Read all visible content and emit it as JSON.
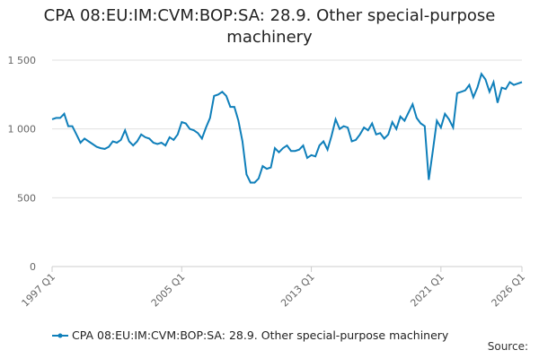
{
  "chart_data": {
    "type": "line",
    "title": "CPA 08:EU:IM:CVM:BOP:SA: 28.9. Other special-purpose machinery",
    "categories": [
      "1997 Q1",
      null,
      null,
      null,
      null,
      null,
      null,
      null,
      null,
      null,
      null,
      null,
      null,
      null,
      null,
      null,
      null,
      null,
      null,
      null,
      null,
      null,
      null,
      null,
      null,
      null,
      null,
      null,
      null,
      null,
      null,
      null,
      "2005 Q1",
      null,
      null,
      null,
      null,
      null,
      null,
      null,
      null,
      null,
      null,
      null,
      null,
      null,
      null,
      null,
      null,
      null,
      null,
      null,
      null,
      null,
      null,
      null,
      null,
      null,
      null,
      null,
      null,
      null,
      null,
      null,
      "2013 Q1",
      null,
      null,
      null,
      null,
      null,
      null,
      null,
      null,
      null,
      null,
      null,
      null,
      null,
      null,
      null,
      null,
      null,
      null,
      null,
      null,
      null,
      null,
      null,
      null,
      null,
      null,
      null,
      null,
      null,
      null,
      null,
      "2021 Q1",
      null,
      null,
      null,
      null,
      null,
      null,
      null,
      null,
      null,
      null,
      null,
      null,
      null,
      null,
      null,
      null,
      null,
      null,
      null,
      "2026 Q1"
    ],
    "series": [
      {
        "name": "CPA 08:EU:IM:CVM:BOP:SA: 28.9. Other special-purpose machinery",
        "color": "#0f7fba",
        "values": [
          1070,
          1080,
          1080,
          1110,
          1020,
          1020,
          960,
          900,
          930,
          910,
          890,
          870,
          860,
          855,
          870,
          910,
          900,
          920,
          990,
          910,
          880,
          910,
          960,
          940,
          930,
          900,
          890,
          900,
          880,
          940,
          920,
          960,
          1050,
          1040,
          1000,
          990,
          970,
          930,
          1010,
          1080,
          1240,
          1250,
          1270,
          1240,
          1160,
          1160,
          1060,
          910,
          670,
          610,
          610,
          640,
          730,
          710,
          720,
          860,
          830,
          860,
          880,
          840,
          840,
          850,
          880,
          790,
          810,
          800,
          880,
          910,
          850,
          950,
          1070,
          1000,
          1020,
          1010,
          910,
          920,
          960,
          1010,
          990,
          1040,
          960,
          970,
          930,
          960,
          1050,
          1000,
          1090,
          1060,
          1120,
          1180,
          1080,
          1040,
          1020,
          630,
          840,
          1060,
          1010,
          1110,
          1070,
          1010,
          1260,
          1270,
          1280,
          1320,
          1230,
          1300,
          1400,
          1360,
          1270,
          1340,
          1190,
          1300,
          1290,
          1340,
          1320,
          1330,
          1340
        ]
      }
    ],
    "ylim": [
      0,
      1500
    ],
    "yticks": [
      0,
      500,
      {
        "value": 1000,
        "label": "1 000"
      },
      {
        "value": 1500,
        "label": "1 500"
      }
    ],
    "grid": true,
    "legend": "bottom",
    "source": "Source:"
  }
}
